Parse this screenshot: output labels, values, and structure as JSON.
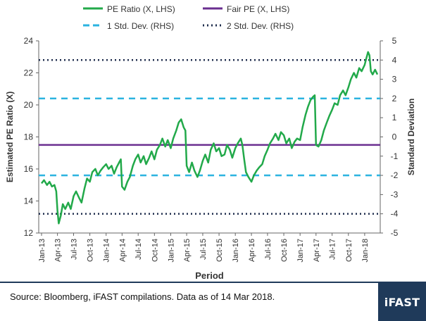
{
  "chart_data": {
    "type": "line",
    "xlabel": "Period",
    "ylabel_left": "Estimated PE Ratio (X)",
    "ylabel_right": "Standard Deviation",
    "ylim_left": [
      12,
      24
    ],
    "yticks_left": [
      "12",
      "14",
      "16",
      "18",
      "20",
      "22",
      "24"
    ],
    "ylim_right": [
      -5,
      5
    ],
    "yticks_right": [
      "-5",
      "-4",
      "-3",
      "-2",
      "-1",
      "0",
      "1",
      "2",
      "3",
      "4",
      "5"
    ],
    "xticks": [
      "Jan-13",
      "Apr-13",
      "Jul-13",
      "Oct-13",
      "Jan-14",
      "Apr-14",
      "Jul-14",
      "Oct-14",
      "Jan-15",
      "Apr-15",
      "Jul-15",
      "Oct-15",
      "Jan-16",
      "Apr-16",
      "Jul-16",
      "Oct-16",
      "Jan-17",
      "Apr-17",
      "Jul-17",
      "Oct-17",
      "Jan-18"
    ],
    "grid": false,
    "legend_position": "top",
    "series": [
      {
        "name": "PE Ratio (X, LHS)",
        "color": "#22a94a",
        "style": "solid",
        "points": [
          [
            "2013-01-01",
            15.1
          ],
          [
            "2013-01-15",
            15.3
          ],
          [
            "2013-02-01",
            15.0
          ],
          [
            "2013-02-15",
            15.2
          ],
          [
            "2013-03-01",
            14.9
          ],
          [
            "2013-03-15",
            15.0
          ],
          [
            "2013-03-25",
            14.6
          ],
          [
            "2013-04-01",
            13.4
          ],
          [
            "2013-04-08",
            12.6
          ],
          [
            "2013-04-20",
            13.1
          ],
          [
            "2013-05-01",
            13.8
          ],
          [
            "2013-05-15",
            13.5
          ],
          [
            "2013-06-01",
            13.9
          ],
          [
            "2013-06-15",
            13.5
          ],
          [
            "2013-07-01",
            14.3
          ],
          [
            "2013-07-15",
            14.6
          ],
          [
            "2013-08-01",
            14.2
          ],
          [
            "2013-08-15",
            13.9
          ],
          [
            "2013-09-01",
            14.8
          ],
          [
            "2013-09-15",
            15.4
          ],
          [
            "2013-10-01",
            15.2
          ],
          [
            "2013-10-15",
            15.8
          ],
          [
            "2013-11-01",
            16.0
          ],
          [
            "2013-11-15",
            15.6
          ],
          [
            "2013-12-01",
            15.9
          ],
          [
            "2013-12-15",
            16.1
          ],
          [
            "2014-01-01",
            16.3
          ],
          [
            "2014-01-15",
            16.0
          ],
          [
            "2014-02-01",
            16.2
          ],
          [
            "2014-02-15",
            15.7
          ],
          [
            "2014-03-01",
            16.1
          ],
          [
            "2014-03-15",
            16.4
          ],
          [
            "2014-03-25",
            16.6
          ],
          [
            "2014-04-01",
            14.9
          ],
          [
            "2014-04-15",
            14.7
          ],
          [
            "2014-05-01",
            15.2
          ],
          [
            "2014-05-15",
            15.5
          ],
          [
            "2014-06-01",
            16.2
          ],
          [
            "2014-06-15",
            16.6
          ],
          [
            "2014-07-01",
            16.9
          ],
          [
            "2014-07-15",
            16.4
          ],
          [
            "2014-08-01",
            16.8
          ],
          [
            "2014-08-15",
            16.3
          ],
          [
            "2014-09-01",
            16.7
          ],
          [
            "2014-09-15",
            17.1
          ],
          [
            "2014-10-01",
            16.6
          ],
          [
            "2014-10-15",
            17.2
          ],
          [
            "2014-11-01",
            17.5
          ],
          [
            "2014-11-15",
            17.9
          ],
          [
            "2014-12-01",
            17.4
          ],
          [
            "2014-12-15",
            17.8
          ],
          [
            "2015-01-01",
            17.3
          ],
          [
            "2015-01-15",
            17.9
          ],
          [
            "2015-02-01",
            18.4
          ],
          [
            "2015-02-15",
            18.9
          ],
          [
            "2015-03-01",
            19.1
          ],
          [
            "2015-03-15",
            18.6
          ],
          [
            "2015-03-25",
            18.4
          ],
          [
            "2015-04-01",
            16.2
          ],
          [
            "2015-04-15",
            15.8
          ],
          [
            "2015-05-01",
            16.4
          ],
          [
            "2015-05-15",
            15.9
          ],
          [
            "2015-06-01",
            15.5
          ],
          [
            "2015-06-15",
            15.9
          ],
          [
            "2015-07-01",
            16.5
          ],
          [
            "2015-07-15",
            16.9
          ],
          [
            "2015-08-01",
            16.4
          ],
          [
            "2015-08-15",
            17.2
          ],
          [
            "2015-09-01",
            17.6
          ],
          [
            "2015-09-15",
            17.1
          ],
          [
            "2015-10-01",
            17.3
          ],
          [
            "2015-10-15",
            16.8
          ],
          [
            "2015-11-01",
            16.9
          ],
          [
            "2015-11-15",
            17.5
          ],
          [
            "2015-12-01",
            17.2
          ],
          [
            "2015-12-15",
            16.7
          ],
          [
            "2016-01-01",
            17.3
          ],
          [
            "2016-01-15",
            17.6
          ],
          [
            "2016-02-01",
            17.9
          ],
          [
            "2016-02-10",
            17.5
          ],
          [
            "2016-02-20",
            16.6
          ],
          [
            "2016-03-01",
            15.8
          ],
          [
            "2016-03-15",
            15.5
          ],
          [
            "2016-04-01",
            15.2
          ],
          [
            "2016-04-15",
            15.6
          ],
          [
            "2016-05-01",
            15.9
          ],
          [
            "2016-05-15",
            16.1
          ],
          [
            "2016-06-01",
            16.3
          ],
          [
            "2016-06-15",
            16.8
          ],
          [
            "2016-07-01",
            17.2
          ],
          [
            "2016-07-15",
            17.6
          ],
          [
            "2016-08-01",
            17.9
          ],
          [
            "2016-08-15",
            18.2
          ],
          [
            "2016-09-01",
            17.8
          ],
          [
            "2016-09-15",
            18.3
          ],
          [
            "2016-10-01",
            18.1
          ],
          [
            "2016-10-15",
            17.6
          ],
          [
            "2016-11-01",
            17.9
          ],
          [
            "2016-11-15",
            17.3
          ],
          [
            "2016-12-01",
            17.7
          ],
          [
            "2016-12-15",
            17.9
          ],
          [
            "2017-01-01",
            17.8
          ],
          [
            "2017-01-15",
            18.6
          ],
          [
            "2017-02-01",
            19.4
          ],
          [
            "2017-02-15",
            19.9
          ],
          [
            "2017-03-01",
            20.3
          ],
          [
            "2017-03-15",
            20.5
          ],
          [
            "2017-03-25",
            20.6
          ],
          [
            "2017-04-01",
            17.5
          ],
          [
            "2017-04-15",
            17.4
          ],
          [
            "2017-05-01",
            17.8
          ],
          [
            "2017-05-15",
            18.4
          ],
          [
            "2017-06-01",
            18.9
          ],
          [
            "2017-06-15",
            19.3
          ],
          [
            "2017-07-01",
            19.7
          ],
          [
            "2017-07-15",
            20.1
          ],
          [
            "2017-08-01",
            20.0
          ],
          [
            "2017-08-15",
            20.6
          ],
          [
            "2017-09-01",
            20.9
          ],
          [
            "2017-09-15",
            20.6
          ],
          [
            "2017-10-01",
            21.1
          ],
          [
            "2017-10-15",
            21.6
          ],
          [
            "2017-11-01",
            22.0
          ],
          [
            "2017-11-15",
            21.7
          ],
          [
            "2017-12-01",
            22.3
          ],
          [
            "2017-12-15",
            22.1
          ],
          [
            "2018-01-01",
            22.5
          ],
          [
            "2018-01-10",
            22.9
          ],
          [
            "2018-01-20",
            23.3
          ],
          [
            "2018-01-28",
            23.1
          ],
          [
            "2018-02-05",
            22.1
          ],
          [
            "2018-02-15",
            21.9
          ],
          [
            "2018-03-01",
            22.2
          ],
          [
            "2018-03-14",
            21.9
          ]
        ]
      },
      {
        "name": "Fair PE (X, LHS)",
        "color": "#6a2e8f",
        "style": "solid",
        "constant_left": 17.5
      },
      {
        "name": "1 Std. Dev. (RHS)",
        "color": "#2bb3e0",
        "style": "dashed",
        "constant_right": [
          -2,
          2
        ]
      },
      {
        "name": "2 Std. Dev. (RHS)",
        "color": "#1f2d4d",
        "style": "dotted",
        "constant_right": [
          -4,
          4
        ]
      }
    ]
  },
  "footer": {
    "source": "Source: Bloomberg, iFAST compilations. Data as of 14 Mar 2018.",
    "logo": "iFAST",
    "bar_color": "#1f3a5a"
  }
}
